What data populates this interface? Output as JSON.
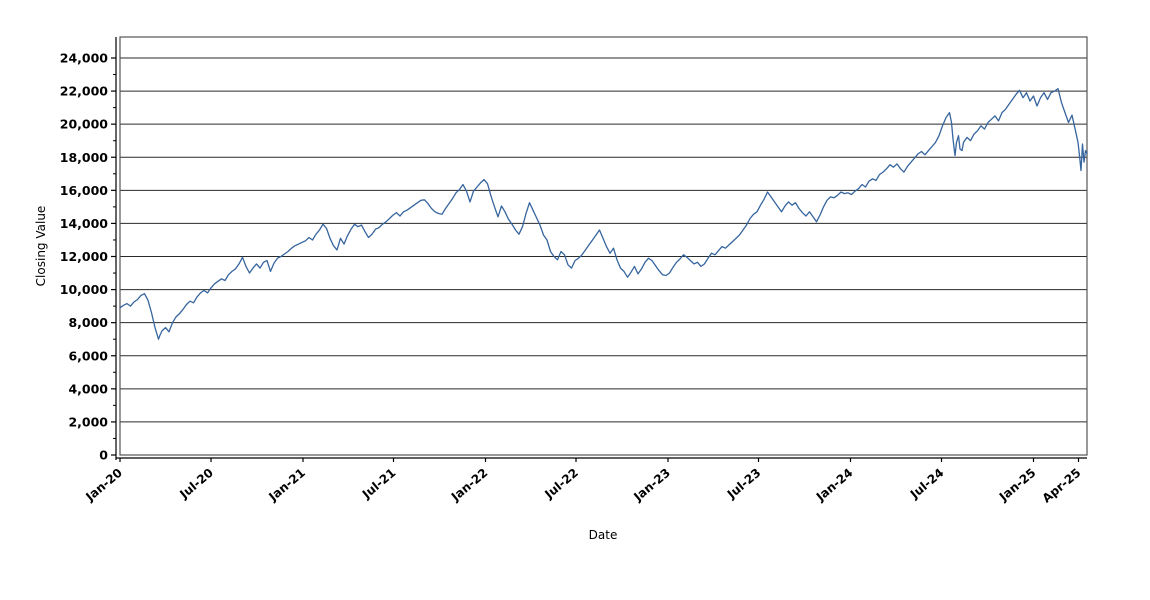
{
  "labels": {
    "x_axis_title": "Date",
    "y_axis_title": "Closing Value"
  },
  "chart_data": {
    "type": "line",
    "title": "",
    "xlabel": "Date",
    "ylabel": "Closing Value",
    "grid": "horizontal",
    "legend": "none",
    "line_color": "#36659e",
    "grid_color": "#2a2a2a",
    "border_color": "#555555",
    "ylim": [
      0,
      24000
    ],
    "y_tick_step": 2000,
    "y_minor_tick_step": 1000,
    "y_tick_values": [
      0,
      2000,
      4000,
      6000,
      8000,
      10000,
      12000,
      14000,
      16000,
      18000,
      20000,
      22000,
      24000
    ],
    "x_total_days": 1934,
    "x_ticks": [
      {
        "day": 0,
        "label": "Jan-20"
      },
      {
        "day": 182,
        "label": "Jul-20"
      },
      {
        "day": 366,
        "label": "Jan-21"
      },
      {
        "day": 547,
        "label": "Jul-21"
      },
      {
        "day": 731,
        "label": "Jan-22"
      },
      {
        "day": 912,
        "label": "Jul-22"
      },
      {
        "day": 1096,
        "label": "Jan-23"
      },
      {
        "day": 1277,
        "label": "Jul-23"
      },
      {
        "day": 1461,
        "label": "Jan-24"
      },
      {
        "day": 1643,
        "label": "Jul-24"
      },
      {
        "day": 1827,
        "label": "Jan-25"
      },
      {
        "day": 1917,
        "label": "Apr-25"
      }
    ],
    "series": [
      {
        "name": "Closing Value",
        "points": [
          [
            0,
            8900
          ],
          [
            7,
            9050
          ],
          [
            14,
            9150
          ],
          [
            21,
            9000
          ],
          [
            28,
            9250
          ],
          [
            35,
            9400
          ],
          [
            42,
            9650
          ],
          [
            49,
            9750
          ],
          [
            56,
            9350
          ],
          [
            63,
            8600
          ],
          [
            70,
            7700
          ],
          [
            77,
            7000
          ],
          [
            80,
            7250
          ],
          [
            84,
            7500
          ],
          [
            91,
            7700
          ],
          [
            98,
            7450
          ],
          [
            105,
            8000
          ],
          [
            112,
            8350
          ],
          [
            119,
            8550
          ],
          [
            126,
            8800
          ],
          [
            133,
            9100
          ],
          [
            140,
            9300
          ],
          [
            147,
            9200
          ],
          [
            154,
            9550
          ],
          [
            161,
            9800
          ],
          [
            168,
            9950
          ],
          [
            175,
            9800
          ],
          [
            182,
            10100
          ],
          [
            189,
            10350
          ],
          [
            196,
            10500
          ],
          [
            203,
            10650
          ],
          [
            210,
            10550
          ],
          [
            217,
            10900
          ],
          [
            224,
            11100
          ],
          [
            231,
            11250
          ],
          [
            238,
            11550
          ],
          [
            245,
            11950
          ],
          [
            252,
            11400
          ],
          [
            259,
            11000
          ],
          [
            266,
            11300
          ],
          [
            273,
            11550
          ],
          [
            280,
            11300
          ],
          [
            287,
            11650
          ],
          [
            294,
            11750
          ],
          [
            301,
            11100
          ],
          [
            308,
            11600
          ],
          [
            315,
            11900
          ],
          [
            322,
            12000
          ],
          [
            329,
            12150
          ],
          [
            336,
            12300
          ],
          [
            343,
            12500
          ],
          [
            350,
            12650
          ],
          [
            357,
            12750
          ],
          [
            364,
            12850
          ],
          [
            371,
            12950
          ],
          [
            378,
            13150
          ],
          [
            385,
            13000
          ],
          [
            392,
            13350
          ],
          [
            399,
            13600
          ],
          [
            406,
            13950
          ],
          [
            413,
            13700
          ],
          [
            420,
            13100
          ],
          [
            427,
            12650
          ],
          [
            434,
            12400
          ],
          [
            441,
            13100
          ],
          [
            448,
            12750
          ],
          [
            455,
            13250
          ],
          [
            462,
            13650
          ],
          [
            469,
            13950
          ],
          [
            476,
            13800
          ],
          [
            483,
            13900
          ],
          [
            490,
            13500
          ],
          [
            497,
            13150
          ],
          [
            504,
            13350
          ],
          [
            511,
            13650
          ],
          [
            518,
            13750
          ],
          [
            525,
            13950
          ],
          [
            532,
            14100
          ],
          [
            539,
            14300
          ],
          [
            546,
            14500
          ],
          [
            553,
            14650
          ],
          [
            560,
            14450
          ],
          [
            567,
            14700
          ],
          [
            574,
            14800
          ],
          [
            581,
            14950
          ],
          [
            588,
            15100
          ],
          [
            595,
            15250
          ],
          [
            602,
            15400
          ],
          [
            609,
            15430
          ],
          [
            616,
            15200
          ],
          [
            623,
            14900
          ],
          [
            630,
            14700
          ],
          [
            637,
            14600
          ],
          [
            644,
            14550
          ],
          [
            651,
            14900
          ],
          [
            658,
            15200
          ],
          [
            665,
            15500
          ],
          [
            672,
            15850
          ],
          [
            679,
            16050
          ],
          [
            686,
            16350
          ],
          [
            693,
            15950
          ],
          [
            700,
            15300
          ],
          [
            707,
            15950
          ],
          [
            714,
            16200
          ],
          [
            721,
            16450
          ],
          [
            728,
            16650
          ],
          [
            735,
            16400
          ],
          [
            742,
            15650
          ],
          [
            749,
            15000
          ],
          [
            756,
            14400
          ],
          [
            763,
            15050
          ],
          [
            770,
            14700
          ],
          [
            777,
            14250
          ],
          [
            784,
            13950
          ],
          [
            791,
            13600
          ],
          [
            798,
            13350
          ],
          [
            805,
            13800
          ],
          [
            812,
            14600
          ],
          [
            819,
            15250
          ],
          [
            826,
            14800
          ],
          [
            833,
            14350
          ],
          [
            840,
            13900
          ],
          [
            847,
            13300
          ],
          [
            854,
            13000
          ],
          [
            861,
            12300
          ],
          [
            868,
            12000
          ],
          [
            875,
            11800
          ],
          [
            882,
            12300
          ],
          [
            889,
            12100
          ],
          [
            896,
            11500
          ],
          [
            903,
            11300
          ],
          [
            910,
            11750
          ],
          [
            917,
            11900
          ],
          [
            924,
            12100
          ],
          [
            931,
            12400
          ],
          [
            938,
            12700
          ],
          [
            945,
            13000
          ],
          [
            952,
            13300
          ],
          [
            959,
            13600
          ],
          [
            966,
            13100
          ],
          [
            973,
            12600
          ],
          [
            980,
            12200
          ],
          [
            987,
            12500
          ],
          [
            994,
            11800
          ],
          [
            1001,
            11300
          ],
          [
            1008,
            11100
          ],
          [
            1015,
            10750
          ],
          [
            1022,
            11050
          ],
          [
            1029,
            11400
          ],
          [
            1036,
            10950
          ],
          [
            1043,
            11250
          ],
          [
            1050,
            11650
          ],
          [
            1057,
            11900
          ],
          [
            1064,
            11750
          ],
          [
            1071,
            11450
          ],
          [
            1078,
            11150
          ],
          [
            1085,
            10900
          ],
          [
            1092,
            10850
          ],
          [
            1099,
            11000
          ],
          [
            1106,
            11350
          ],
          [
            1113,
            11650
          ],
          [
            1120,
            11850
          ],
          [
            1127,
            12100
          ],
          [
            1134,
            11950
          ],
          [
            1141,
            11750
          ],
          [
            1148,
            11550
          ],
          [
            1155,
            11650
          ],
          [
            1162,
            11400
          ],
          [
            1169,
            11550
          ],
          [
            1176,
            11900
          ],
          [
            1183,
            12200
          ],
          [
            1190,
            12100
          ],
          [
            1197,
            12350
          ],
          [
            1204,
            12600
          ],
          [
            1211,
            12500
          ],
          [
            1218,
            12700
          ],
          [
            1225,
            12900
          ],
          [
            1232,
            13100
          ],
          [
            1239,
            13300
          ],
          [
            1246,
            13600
          ],
          [
            1253,
            13900
          ],
          [
            1260,
            14300
          ],
          [
            1267,
            14550
          ],
          [
            1274,
            14700
          ],
          [
            1281,
            15100
          ],
          [
            1288,
            15450
          ],
          [
            1295,
            15900
          ],
          [
            1302,
            15600
          ],
          [
            1309,
            15300
          ],
          [
            1316,
            15000
          ],
          [
            1323,
            14700
          ],
          [
            1330,
            15050
          ],
          [
            1337,
            15300
          ],
          [
            1344,
            15100
          ],
          [
            1351,
            15250
          ],
          [
            1358,
            14900
          ],
          [
            1365,
            14650
          ],
          [
            1372,
            14450
          ],
          [
            1379,
            14700
          ],
          [
            1386,
            14400
          ],
          [
            1393,
            14100
          ],
          [
            1400,
            14500
          ],
          [
            1407,
            15000
          ],
          [
            1414,
            15400
          ],
          [
            1421,
            15600
          ],
          [
            1428,
            15550
          ],
          [
            1435,
            15700
          ],
          [
            1442,
            15900
          ],
          [
            1449,
            15800
          ],
          [
            1456,
            15850
          ],
          [
            1463,
            15750
          ],
          [
            1470,
            15950
          ],
          [
            1477,
            16100
          ],
          [
            1484,
            16350
          ],
          [
            1491,
            16200
          ],
          [
            1498,
            16550
          ],
          [
            1505,
            16700
          ],
          [
            1512,
            16600
          ],
          [
            1519,
            16950
          ],
          [
            1526,
            17100
          ],
          [
            1533,
            17300
          ],
          [
            1540,
            17550
          ],
          [
            1547,
            17400
          ],
          [
            1554,
            17600
          ],
          [
            1561,
            17300
          ],
          [
            1568,
            17100
          ],
          [
            1575,
            17450
          ],
          [
            1582,
            17700
          ],
          [
            1589,
            17950
          ],
          [
            1596,
            18200
          ],
          [
            1603,
            18350
          ],
          [
            1610,
            18150
          ],
          [
            1617,
            18400
          ],
          [
            1624,
            18650
          ],
          [
            1631,
            18900
          ],
          [
            1638,
            19300
          ],
          [
            1645,
            19900
          ],
          [
            1652,
            20400
          ],
          [
            1659,
            20700
          ],
          [
            1663,
            20100
          ],
          [
            1666,
            19100
          ],
          [
            1670,
            18100
          ],
          [
            1673,
            18900
          ],
          [
            1677,
            19300
          ],
          [
            1680,
            18500
          ],
          [
            1684,
            18400
          ],
          [
            1687,
            18900
          ],
          [
            1694,
            19200
          ],
          [
            1701,
            19000
          ],
          [
            1708,
            19400
          ],
          [
            1715,
            19600
          ],
          [
            1722,
            19900
          ],
          [
            1729,
            19700
          ],
          [
            1736,
            20100
          ],
          [
            1743,
            20300
          ],
          [
            1750,
            20500
          ],
          [
            1757,
            20200
          ],
          [
            1764,
            20700
          ],
          [
            1771,
            20900
          ],
          [
            1778,
            21200
          ],
          [
            1785,
            21500
          ],
          [
            1792,
            21800
          ],
          [
            1799,
            22050
          ],
          [
            1806,
            21600
          ],
          [
            1813,
            21900
          ],
          [
            1820,
            21400
          ],
          [
            1827,
            21700
          ],
          [
            1834,
            21100
          ],
          [
            1841,
            21600
          ],
          [
            1848,
            21900
          ],
          [
            1855,
            21500
          ],
          [
            1862,
            21900
          ],
          [
            1869,
            22000
          ],
          [
            1876,
            22150
          ],
          [
            1883,
            21300
          ],
          [
            1890,
            20700
          ],
          [
            1897,
            20100
          ],
          [
            1904,
            20550
          ],
          [
            1911,
            19600
          ],
          [
            1916,
            18900
          ],
          [
            1919,
            18100
          ],
          [
            1922,
            17200
          ],
          [
            1925,
            18800
          ],
          [
            1928,
            17700
          ],
          [
            1931,
            18400
          ],
          [
            1934,
            18200
          ]
        ]
      }
    ]
  }
}
